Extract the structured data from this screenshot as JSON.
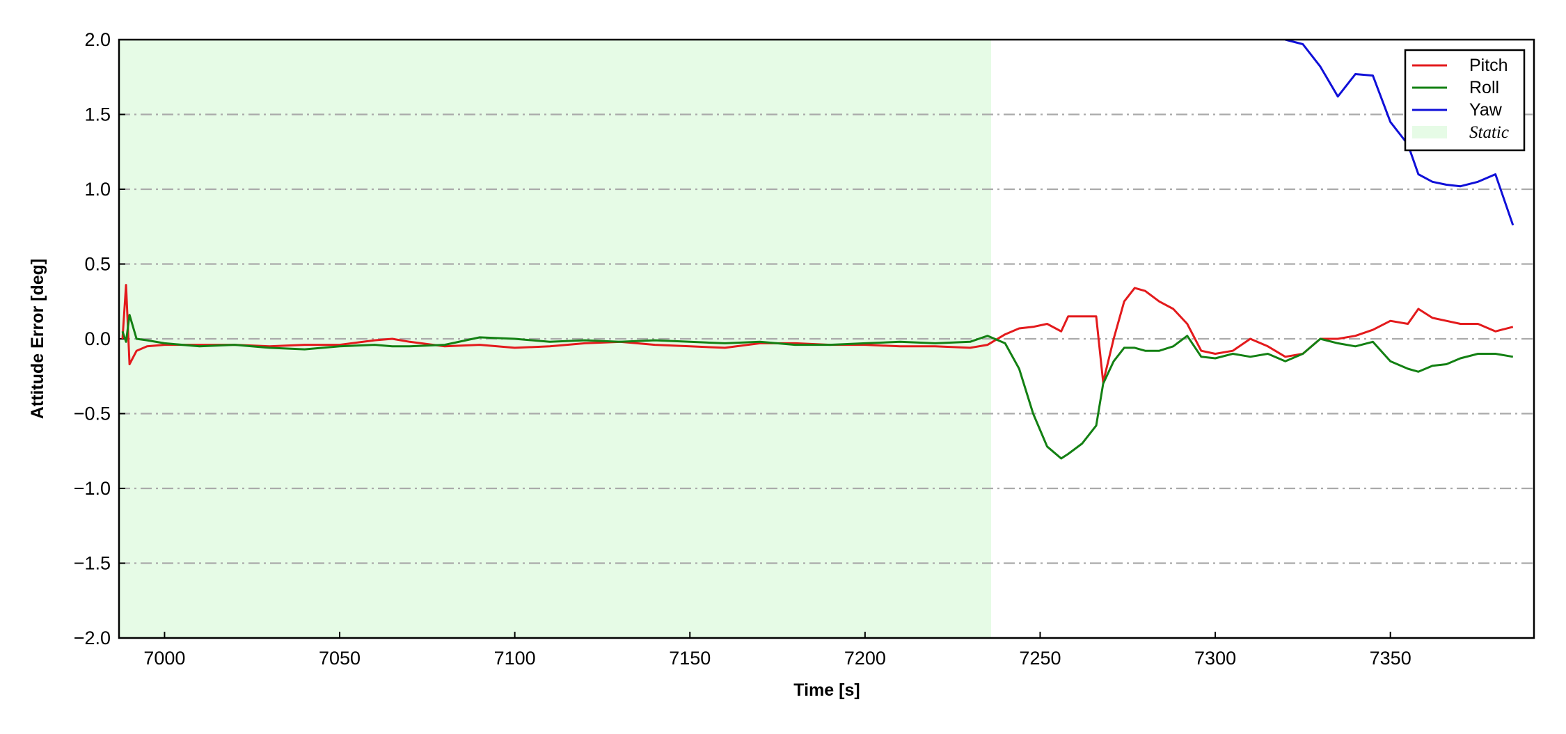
{
  "chart_data": {
    "type": "line",
    "xlabel": "Time [s]",
    "ylabel": "Attitude Error [deg]",
    "xlim": [
      6987,
      7391
    ],
    "ylim": [
      -2,
      2
    ],
    "xticks": [
      7000,
      7050,
      7100,
      7150,
      7200,
      7250,
      7300,
      7350
    ],
    "yticks": [
      {
        "value": -2,
        "label": "−2.0"
      },
      {
        "value": -1.5,
        "label": "−1.5"
      },
      {
        "value": -1,
        "label": "−1.0"
      },
      {
        "value": -0.5,
        "label": "−0.5"
      },
      {
        "value": 0,
        "label": "0.0"
      },
      0.5,
      {
        "value": 1,
        "label": "1.0"
      },
      1.5,
      {
        "value": 2,
        "label": "2.0"
      }
    ],
    "grid": "y",
    "legend": "upper right",
    "shaded_regions": [
      {
        "name": "Static",
        "x0": 6987,
        "x1": 7236,
        "color": "#e6fbe6"
      }
    ],
    "x": [
      6988,
      6989,
      6990,
      6992,
      6995,
      7000,
      7010,
      7020,
      7030,
      7040,
      7050,
      7060,
      7065,
      7070,
      7080,
      7090,
      7100,
      7110,
      7120,
      7130,
      7140,
      7150,
      7160,
      7170,
      7180,
      7190,
      7200,
      7210,
      7220,
      7230,
      7235,
      7240,
      7244,
      7248,
      7252,
      7256,
      7258,
      7262,
      7266,
      7268,
      7271,
      7274,
      7277,
      7280,
      7284,
      7288,
      7292,
      7296,
      7300,
      7305,
      7310,
      7315,
      7320,
      7325,
      7330,
      7335,
      7340,
      7345,
      7350,
      7355,
      7358,
      7362,
      7366,
      7370,
      7375,
      7380,
      7385
    ],
    "series": [
      {
        "name": "Pitch",
        "color": "#e31a1c",
        "values": [
          0.0,
          0.36,
          -0.17,
          -0.08,
          -0.05,
          -0.04,
          -0.04,
          -0.04,
          -0.05,
          -0.04,
          -0.04,
          -0.01,
          0.0,
          -0.02,
          -0.05,
          -0.04,
          -0.06,
          -0.05,
          -0.03,
          -0.02,
          -0.04,
          -0.05,
          -0.06,
          -0.03,
          -0.03,
          -0.04,
          -0.04,
          -0.05,
          -0.05,
          -0.06,
          -0.04,
          0.03,
          0.07,
          0.08,
          0.1,
          0.05,
          0.15,
          0.15,
          0.15,
          -0.29,
          0.0,
          0.25,
          0.34,
          0.32,
          0.25,
          0.2,
          0.1,
          -0.08,
          -0.1,
          -0.08,
          0.0,
          -0.05,
          -0.12,
          -0.1,
          0.0,
          0.0,
          0.02,
          0.06,
          0.12,
          0.1,
          0.2,
          0.14,
          0.12,
          0.1,
          0.1,
          0.05,
          0.08
        ]
      },
      {
        "name": "Roll",
        "color": "#138013",
        "values": [
          0.05,
          -0.02,
          0.16,
          0.0,
          -0.01,
          -0.03,
          -0.05,
          -0.04,
          -0.06,
          -0.07,
          -0.05,
          -0.04,
          -0.05,
          -0.05,
          -0.04,
          0.01,
          0.0,
          -0.02,
          -0.01,
          -0.02,
          -0.01,
          -0.02,
          -0.03,
          -0.02,
          -0.04,
          -0.04,
          -0.03,
          -0.02,
          -0.03,
          -0.02,
          0.02,
          -0.03,
          -0.2,
          -0.5,
          -0.72,
          -0.8,
          -0.77,
          -0.7,
          -0.58,
          -0.3,
          -0.15,
          -0.06,
          -0.06,
          -0.08,
          -0.08,
          -0.05,
          0.02,
          -0.12,
          -0.13,
          -0.1,
          -0.12,
          -0.1,
          -0.15,
          -0.1,
          0.0,
          -0.03,
          -0.05,
          -0.02,
          -0.15,
          -0.2,
          -0.22,
          -0.18,
          -0.17,
          -0.13,
          -0.1,
          -0.1,
          -0.12
        ]
      },
      {
        "name": "Yaw",
        "color": "#1010d8",
        "values": [
          null,
          null,
          null,
          null,
          null,
          null,
          null,
          null,
          null,
          null,
          null,
          null,
          null,
          null,
          null,
          null,
          null,
          null,
          null,
          null,
          null,
          null,
          null,
          null,
          null,
          null,
          null,
          null,
          null,
          null,
          null,
          null,
          null,
          null,
          null,
          null,
          null,
          null,
          null,
          null,
          null,
          null,
          null,
          null,
          null,
          null,
          null,
          null,
          null,
          null,
          null,
          null,
          2.0,
          1.97,
          1.82,
          1.62,
          1.77,
          1.76,
          1.45,
          1.3,
          1.1,
          1.05,
          1.03,
          1.02,
          1.05,
          1.1,
          0.76
        ]
      }
    ]
  }
}
